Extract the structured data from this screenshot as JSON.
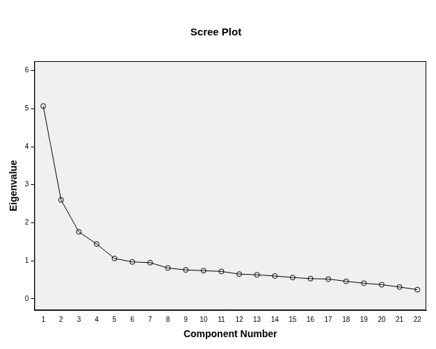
{
  "chart_data": {
    "type": "line",
    "title": "Scree Plot",
    "x_label": "Component Number",
    "y_label": "Eigenvalue",
    "categories": [
      "1",
      "2",
      "3",
      "4",
      "5",
      "6",
      "7",
      "8",
      "9",
      "10",
      "11",
      "12",
      "13",
      "14",
      "15",
      "16",
      "17",
      "18",
      "19",
      "20",
      "21",
      "22"
    ],
    "values": [
      5.07,
      2.6,
      1.76,
      1.44,
      1.06,
      0.97,
      0.95,
      0.81,
      0.76,
      0.74,
      0.72,
      0.65,
      0.63,
      0.6,
      0.56,
      0.53,
      0.52,
      0.46,
      0.41,
      0.37,
      0.31,
      0.24
    ],
    "color": "#000000",
    "marker": "circle",
    "line_style": "solid",
    "ylim": [
      -0.3,
      6.25
    ],
    "yticks": [
      0,
      1,
      2,
      3,
      4,
      5,
      6
    ],
    "grid": false
  }
}
